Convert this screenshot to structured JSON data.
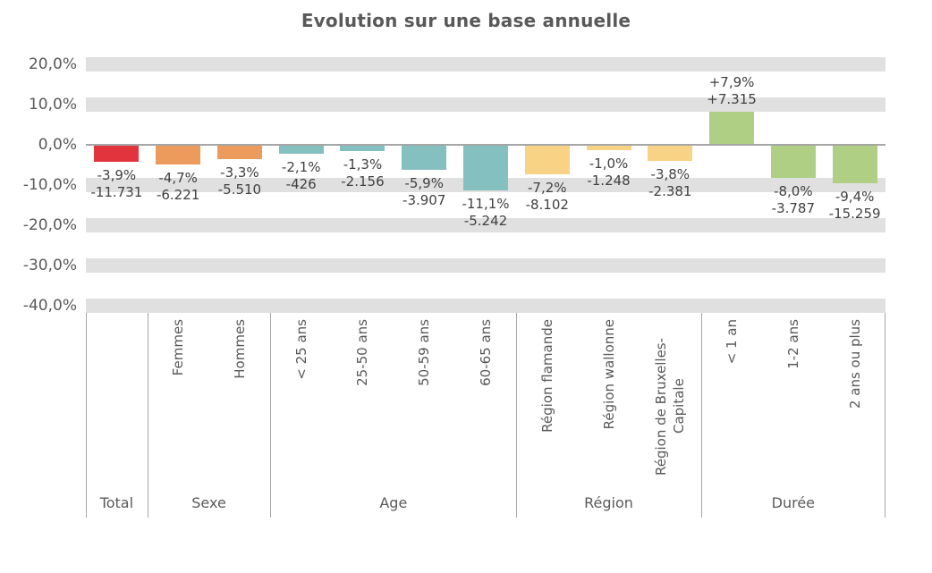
{
  "title": "Evolution sur une base annuelle",
  "chart_data": {
    "type": "bar",
    "title": "Evolution sur une base annuelle",
    "ylabel": "",
    "xlabel": "",
    "ylim": [
      -40,
      20
    ],
    "grid": "horizontal-striped-bands",
    "legend": "none",
    "y_ticks": [
      {
        "value": 20,
        "label": "20,0%"
      },
      {
        "value": 10,
        "label": "10,0%"
      },
      {
        "value": 0,
        "label": "0,0%"
      },
      {
        "value": -10,
        "label": "-10,0%"
      },
      {
        "value": -20,
        "label": "-20,0%"
      },
      {
        "value": -30,
        "label": "-30,0%"
      },
      {
        "value": -40,
        "label": "-40,0%"
      }
    ],
    "groups": [
      {
        "label": "Total",
        "color": "#e2343c",
        "bars": [
          {
            "category": "",
            "pct": -3.9,
            "pct_label": "-3,9%",
            "count": -11731,
            "count_label": "-11.731"
          }
        ]
      },
      {
        "label": "Sexe",
        "color": "#ec9b5c",
        "bars": [
          {
            "category": "Femmes",
            "pct": -4.7,
            "pct_label": "-4,7%",
            "count": -6221,
            "count_label": "-6.221"
          },
          {
            "category": "Hommes",
            "pct": -3.3,
            "pct_label": "-3,3%",
            "count": -5510,
            "count_label": "-5.510"
          }
        ]
      },
      {
        "label": "Age",
        "color": "#85c0c1",
        "bars": [
          {
            "category": "< 25 ans",
            "pct": -2.1,
            "pct_label": "-2,1%",
            "count": -426,
            "count_label": "-426"
          },
          {
            "category": "25-50 ans",
            "pct": -1.3,
            "pct_label": "-1,3%",
            "count": -2156,
            "count_label": "-2.156"
          },
          {
            "category": "50-59 ans",
            "pct": -5.9,
            "pct_label": "-5,9%",
            "count": -3907,
            "count_label": "-3.907"
          },
          {
            "category": "60-65 ans",
            "pct": -11.1,
            "pct_label": "-11,1%",
            "count": -5242,
            "count_label": "-5.242"
          }
        ]
      },
      {
        "label": "Région",
        "color": "#f8d385",
        "bars": [
          {
            "category": "Région flamande",
            "pct": -7.2,
            "pct_label": "-7,2%",
            "count": -8102,
            "count_label": "-8.102"
          },
          {
            "category": "Région wallonne",
            "pct": -1.0,
            "pct_label": "-1,0%",
            "count": -1248,
            "count_label": "-1.248"
          },
          {
            "category": "Région de Bruxelles-Capitale",
            "pct": -3.8,
            "pct_label": "-3,8%",
            "count": -2381,
            "count_label": "-2.381",
            "wrap": true
          }
        ]
      },
      {
        "label": "Durée",
        "color": "#afd084",
        "bars": [
          {
            "category": "< 1 an",
            "pct": 7.9,
            "pct_label": "+7,9%",
            "count": 7315,
            "count_label": "+7.315"
          },
          {
            "category": "1-2 ans",
            "pct": -8.0,
            "pct_label": "-8,0%",
            "count": -3787,
            "count_label": "-3.787"
          },
          {
            "category": "2 ans ou plus",
            "pct": -9.4,
            "pct_label": "-9,4%",
            "count": -15259,
            "count_label": "-15.259"
          }
        ]
      }
    ],
    "colors": {
      "grid_band": "#e0e0e0",
      "zero_line": "#a6a6a6",
      "divider": "#a6a6a6",
      "title_text": "#595959",
      "axis_text": "#595959",
      "data_label_text": "#404040"
    }
  }
}
